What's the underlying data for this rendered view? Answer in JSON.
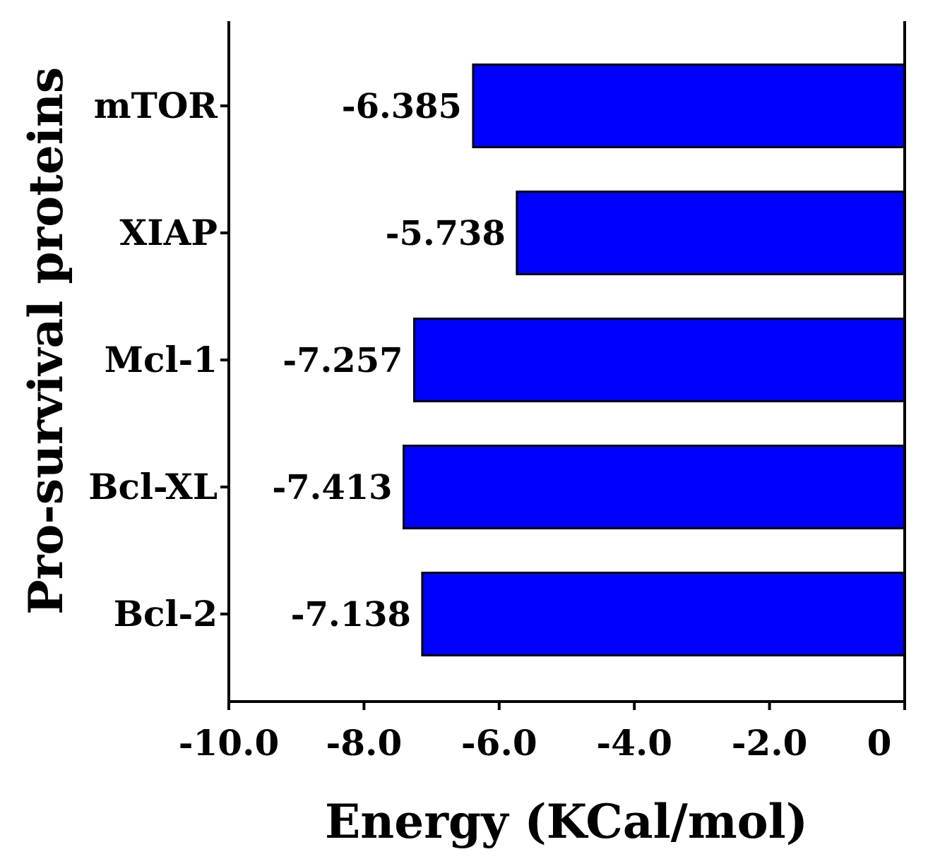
{
  "chart_data": {
    "type": "bar",
    "orientation": "horizontal",
    "categories": [
      "mTOR",
      "XIAP",
      "Mcl-1",
      "Bcl-XL",
      "Bcl-2"
    ],
    "values": [
      -6.385,
      -5.738,
      -7.257,
      -7.413,
      -7.138
    ],
    "value_labels": [
      "-6.385",
      "-5.738",
      "-7.257",
      "-7.413",
      "-7.138"
    ],
    "xlabel": "Energy (KCal/mol)",
    "ylabel": "Pro-survival proteins",
    "xlim": [
      -10,
      0
    ],
    "xticks": [
      -10,
      -8,
      -6,
      -4,
      -2,
      0
    ],
    "xtick_labels": [
      "-10.0",
      "-8.0",
      "-6.0",
      "-4.0",
      "-2.0",
      "0"
    ],
    "bar_color": "#0000ff",
    "grid": false
  }
}
